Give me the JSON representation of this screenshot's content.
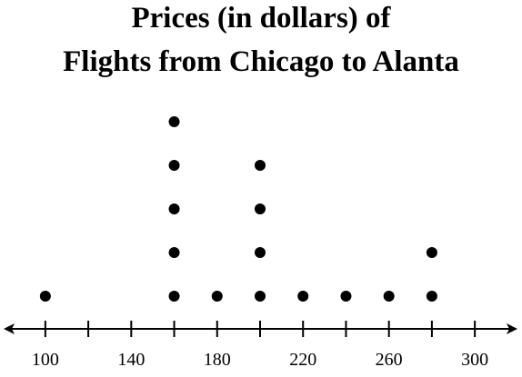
{
  "chart_data": {
    "type": "dot",
    "title": [
      "Prices (in dollars) of",
      "Flights from Chicago to Alanta"
    ],
    "x": [
      100,
      160,
      180,
      200,
      220,
      240,
      260,
      280
    ],
    "values": [
      1,
      5,
      1,
      4,
      1,
      1,
      1,
      2
    ],
    "color": "#000000",
    "xlim": [
      81,
      319
    ],
    "xticks": [
      100,
      140,
      180,
      220,
      260,
      300
    ],
    "xminor_ticks": [
      120,
      160,
      200,
      240,
      280
    ]
  }
}
